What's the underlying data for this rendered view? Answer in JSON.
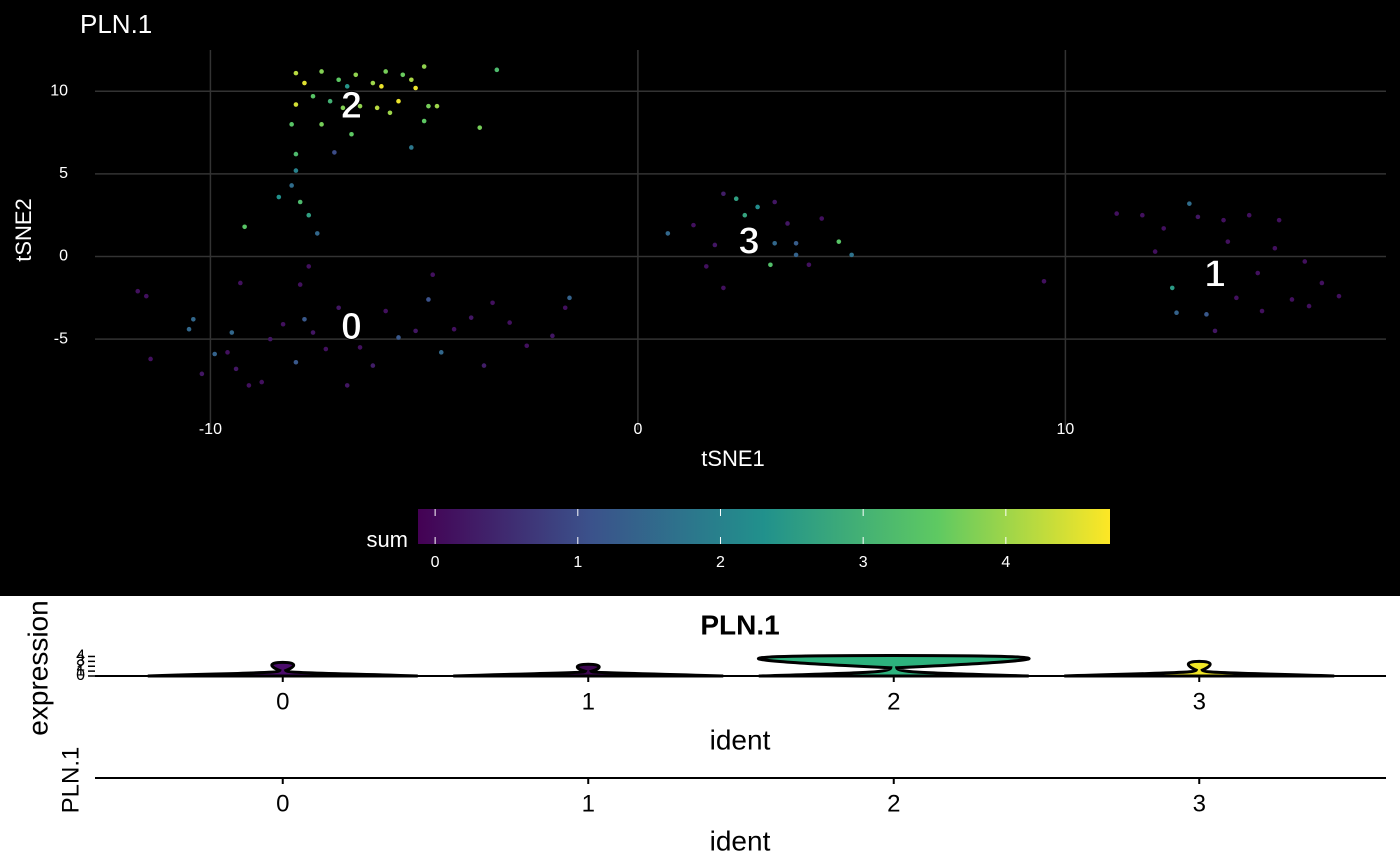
{
  "chart_data": [
    {
      "type": "scatter",
      "title": "PLN.1",
      "x_label": "tSNE1",
      "y_label": "tSNE2",
      "xlim": [
        -12.7,
        17.5
      ],
      "ylim": [
        -10.5,
        12.5
      ],
      "xticks": [
        -10,
        0,
        10
      ],
      "yticks": [
        -5,
        0,
        5,
        10
      ],
      "grid": true,
      "colorbar": {
        "label": "sum",
        "lim": [
          -0.12,
          4.73
        ],
        "ticks": [
          0,
          1,
          2,
          3,
          4
        ],
        "colormap": "viridis"
      },
      "points": {
        "x": [
          -8.0,
          -7.8,
          -7.4,
          -7.0,
          -6.6,
          -6.2,
          -5.9,
          -5.5,
          -5.3,
          -5.0,
          -6.0,
          -5.6,
          -5.2,
          -7.6,
          -7.2,
          -6.9,
          -6.5,
          -6.1,
          -5.8,
          -4.9,
          -4.7,
          -5.0,
          -8.0,
          -8.1,
          -7.4,
          -6.7,
          -3.7,
          -3.3,
          -6.8,
          -8.0,
          -7.1,
          -5.3,
          -8.4,
          -8.1,
          -8.0,
          -7.9,
          -7.7,
          -9.2,
          -7.5,
          -11.7,
          -11.5,
          -11.4,
          -10.5,
          -10.4,
          -10.2,
          -9.9,
          -9.6,
          -9.5,
          -9.4,
          -9.1,
          -8.8,
          -8.6,
          -8.3,
          -8.0,
          -7.8,
          -7.6,
          -7.3,
          -7.0,
          -6.8,
          -6.5,
          -6.2,
          -5.9,
          -5.6,
          -5.2,
          -4.9,
          -4.6,
          -4.3,
          -3.9,
          -3.6,
          -3.4,
          -3.0,
          -2.6,
          -2.0,
          -1.7,
          -1.6,
          -7.9,
          -7.7,
          -4.8,
          -9.3,
          0.7,
          1.3,
          1.8,
          2.0,
          2.3,
          2.5,
          2.8,
          3.2,
          3.1,
          3.2,
          3.7,
          3.7,
          4.0,
          4.3,
          4.7,
          5.0,
          2.0,
          1.6,
          3.5,
          9.5,
          11.2,
          11.8,
          12.3,
          12.9,
          13.1,
          13.7,
          14.3,
          15.0,
          12.5,
          12.6,
          13.3,
          13.5,
          14.0,
          14.6,
          15.3,
          15.7,
          16.4,
          15.6,
          13.8,
          14.9,
          12.1,
          16.0,
          14.5
        ],
        "y": [
          11.1,
          10.5,
          11.2,
          10.7,
          11.0,
          10.5,
          11.2,
          11.0,
          10.7,
          11.5,
          10.3,
          9.4,
          10.2,
          9.7,
          9.4,
          9.0,
          9.1,
          9.0,
          8.7,
          9.1,
          9.1,
          8.2,
          9.2,
          8.0,
          8.0,
          7.4,
          7.8,
          11.3,
          10.3,
          6.2,
          6.3,
          6.6,
          3.6,
          4.3,
          5.2,
          3.3,
          2.5,
          1.8,
          1.4,
          -2.1,
          -2.4,
          -6.2,
          -4.4,
          -3.8,
          -7.1,
          -5.9,
          -5.8,
          -4.6,
          -6.8,
          -7.8,
          -7.6,
          -5.0,
          -4.1,
          -6.4,
          -3.8,
          -4.6,
          -5.6,
          -3.1,
          -7.8,
          -5.5,
          -6.6,
          -3.3,
          -4.9,
          -4.5,
          -2.6,
          -5.8,
          -4.4,
          -3.7,
          -6.6,
          -2.8,
          -4.0,
          -5.4,
          -4.8,
          -3.1,
          -2.5,
          -1.7,
          -0.6,
          -1.1,
          -1.6,
          1.4,
          1.9,
          0.7,
          3.8,
          3.5,
          2.5,
          3.0,
          3.3,
          -0.5,
          0.8,
          0.8,
          0.1,
          -0.5,
          2.3,
          0.9,
          0.1,
          -1.9,
          -0.6,
          2.0,
          -1.5,
          2.6,
          2.5,
          1.7,
          3.2,
          2.4,
          2.2,
          2.5,
          2.2,
          -1.9,
          -3.4,
          -3.5,
          -4.5,
          -2.5,
          -3.3,
          -2.6,
          -3.0,
          -2.4,
          -0.3,
          0.9,
          0.5,
          0.3,
          -1.6,
          -1.0
        ],
        "values": [
          4.2,
          4.5,
          3.8,
          3.5,
          3.9,
          4.0,
          3.7,
          3.6,
          4.1,
          3.9,
          4.6,
          4.6,
          4.6,
          3.4,
          3.0,
          3.8,
          3.9,
          4.2,
          4.0,
          3.7,
          4.0,
          3.5,
          4.4,
          3.4,
          3.7,
          3.5,
          3.7,
          3.2,
          2.4,
          3.2,
          1.0,
          1.8,
          2.3,
          1.6,
          2.0,
          3.2,
          2.6,
          3.4,
          1.5,
          0.1,
          0.1,
          0.1,
          1.5,
          1.5,
          0.2,
          1.4,
          0.1,
          1.5,
          0.2,
          0.1,
          0.1,
          0.2,
          0.1,
          1.2,
          1.2,
          0.2,
          0.1,
          0.2,
          0.2,
          0.1,
          0.3,
          0.1,
          1.2,
          0.2,
          1.1,
          1.5,
          0.1,
          0.2,
          0.3,
          0.1,
          0.1,
          0.1,
          0.2,
          0.1,
          1.4,
          0.1,
          0.1,
          0.1,
          0.1,
          1.5,
          0.1,
          0.2,
          0.3,
          2.6,
          2.7,
          2.2,
          0.2,
          3.3,
          1.5,
          1.3,
          1.4,
          0.1,
          0.1,
          3.4,
          1.7,
          0.1,
          0.1,
          0.2,
          0.1,
          0.1,
          0.1,
          0.1,
          1.6,
          0.2,
          0.1,
          0.1,
          0.1,
          2.5,
          1.4,
          1.2,
          0.2,
          0.1,
          0.1,
          0.1,
          0.1,
          0.1,
          0.1,
          0.1,
          0.1,
          0.1,
          0.1,
          0.1
        ]
      },
      "cluster_labels": {
        "text": [
          "2",
          "3",
          "0",
          "1"
        ],
        "x": [
          -6.7,
          2.6,
          -6.7,
          13.5
        ],
        "y": [
          9.0,
          0.8,
          -4.4,
          -1.2
        ]
      }
    },
    {
      "type": "violin",
      "title": "PLN.1",
      "x_label": "ident",
      "y_label": "expression",
      "categories": [
        "0",
        "1",
        "2",
        "3"
      ],
      "values": [
        2.8,
        2.4,
        4.2,
        3.0
      ],
      "colors": [
        "#4b0c6b",
        "#3e0751",
        "#2db27d",
        "#f0e626"
      ],
      "ylim": [
        0,
        4.3
      ],
      "yticks": [
        0,
        1,
        2,
        3,
        4
      ]
    },
    {
      "type": "axis",
      "x_label": "ident",
      "y_label": "PLN.1",
      "categories": [
        "0",
        "1",
        "2",
        "3"
      ]
    }
  ]
}
